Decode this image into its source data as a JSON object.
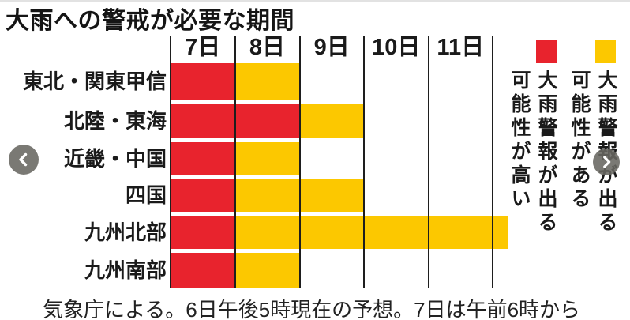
{
  "header": {
    "title": "大雨への警戒が必要な期間"
  },
  "timeline": {
    "columns": [
      "7日",
      "8日",
      "9日",
      "10日",
      "11日"
    ],
    "rows": [
      {
        "label": "東北・関東甲信",
        "cells": [
          "red",
          "yellow",
          "none",
          "none",
          "none"
        ],
        "extends_beyond": false
      },
      {
        "label": "北陸・東海",
        "cells": [
          "red",
          "red",
          "yellow",
          "none",
          "none"
        ],
        "extends_beyond": false
      },
      {
        "label": "近畿・中国",
        "cells": [
          "red",
          "yellow",
          "none",
          "none",
          "none"
        ],
        "extends_beyond": false
      },
      {
        "label": "四国",
        "cells": [
          "red",
          "yellow",
          "yellow",
          "none",
          "none"
        ],
        "extends_beyond": false
      },
      {
        "label": "九州北部",
        "cells": [
          "red",
          "yellow",
          "yellow",
          "yellow",
          "yellow"
        ],
        "extends_beyond": true
      },
      {
        "label": "九州南部",
        "cells": [
          "red",
          "yellow",
          "none",
          "none",
          "none"
        ],
        "extends_beyond": false
      }
    ]
  },
  "legend": {
    "items": [
      {
        "color_name": "red",
        "color": "#e8232d",
        "line1": "大雨警報が出る",
        "line2": "可能性が高い"
      },
      {
        "color_name": "yellow",
        "color": "#fcc800",
        "line1": "大雨警報が出る",
        "line2": "可能性がある"
      }
    ]
  },
  "nav": {
    "prev_icon": "chevron-left",
    "next_icon": "chevron-right"
  },
  "caption": "気象庁による。6日午後5時現在の予想。7日は午前6時から",
  "colors": {
    "red": "#e8232d",
    "yellow": "#fcc800",
    "line": "#1e1e1e"
  },
  "chart_data": {
    "type": "heatmap",
    "title": "大雨への警戒が必要な期間",
    "x_categories": [
      "7日",
      "8日",
      "9日",
      "10日",
      "11日"
    ],
    "y_categories": [
      "東北・関東甲信",
      "北陸・東海",
      "近畿・中国",
      "四国",
      "九州北部",
      "九州南部"
    ],
    "cell_states": [
      [
        "red",
        "yellow",
        "none",
        "none",
        "none"
      ],
      [
        "red",
        "red",
        "yellow",
        "none",
        "none"
      ],
      [
        "red",
        "yellow",
        "none",
        "none",
        "none"
      ],
      [
        "red",
        "yellow",
        "yellow",
        "none",
        "none"
      ],
      [
        "red",
        "yellow",
        "yellow",
        "yellow",
        "yellow-continues-beyond"
      ],
      [
        "red",
        "yellow",
        "none",
        "none",
        "none"
      ]
    ],
    "legend": {
      "red": "大雨警報が出る可能性が高い",
      "yellow": "大雨警報が出る可能性がある"
    },
    "note": "気象庁による。6日午後5時現在の予想。7日は午前6時から",
    "layout": {
      "grid": "vertical column dividers only",
      "legend_position": "right, vertical text"
    }
  }
}
